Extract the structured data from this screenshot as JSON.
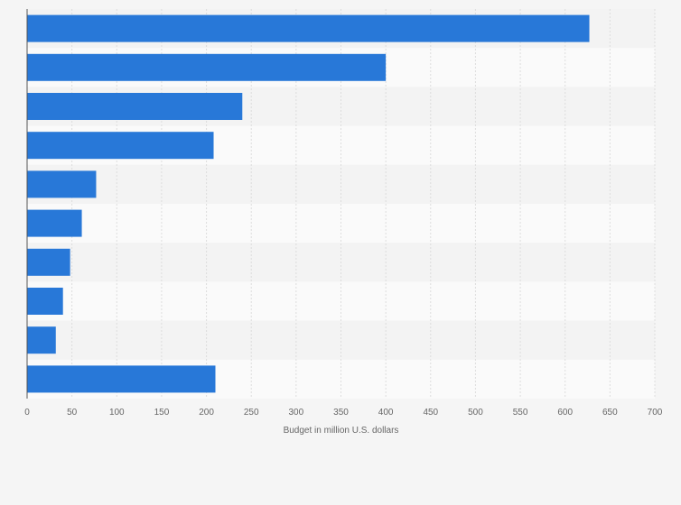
{
  "chart_data": {
    "type": "bar",
    "orientation": "horizontal",
    "title": "",
    "xlabel": "Budget in million U.S. dollars",
    "ylabel": "",
    "xlim": [
      0,
      700
    ],
    "x_ticks": [
      0,
      50,
      100,
      150,
      200,
      250,
      300,
      350,
      400,
      450,
      500,
      550,
      600,
      650,
      700
    ],
    "categories": [
      "",
      "",
      "",
      "",
      "",
      "",
      "",
      "",
      "",
      ""
    ],
    "values": [
      627,
      400,
      240,
      208,
      77,
      61,
      48,
      40,
      32,
      210
    ],
    "grid": true,
    "legend": "none",
    "bar_color": "#2878d8",
    "band_colors": [
      "#f3f3f3",
      "#fafafa"
    ],
    "gridline_color": "#dddddd",
    "axis_color": "#555555"
  }
}
